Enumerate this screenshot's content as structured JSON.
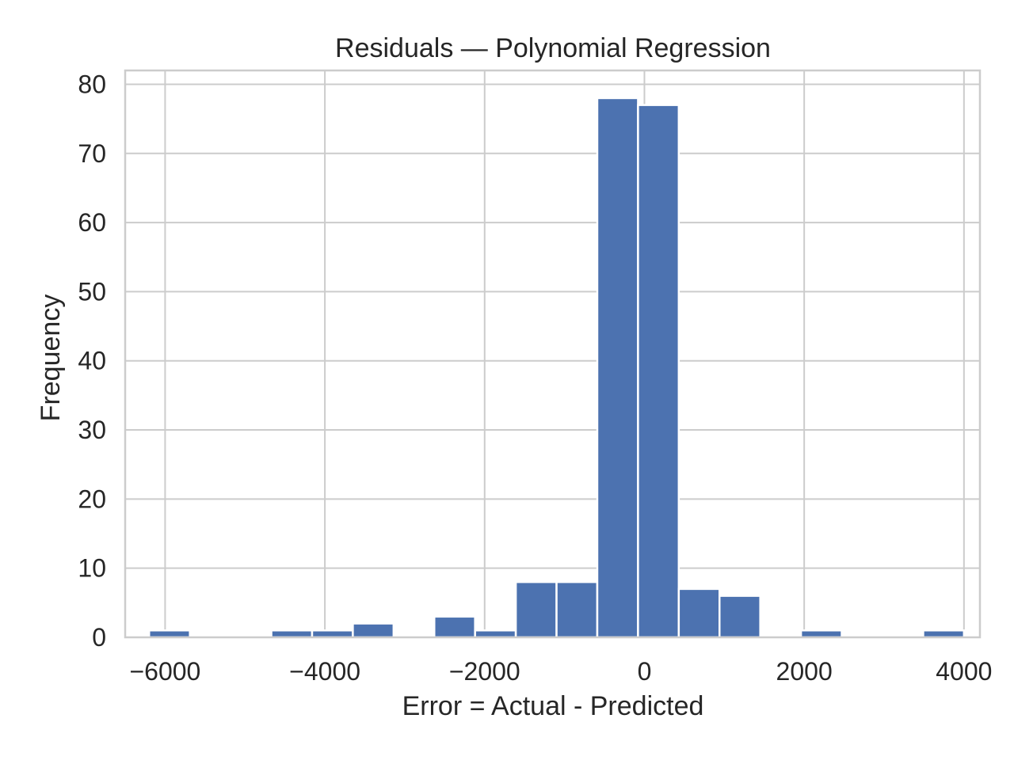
{
  "chart_data": {
    "type": "bar",
    "title": "Residuals — Polynomial Regression",
    "xlabel": "Error = Actual - Predicted",
    "ylabel": "Frequency",
    "xlim": [
      -6500,
      4200
    ],
    "ylim": [
      0,
      82
    ],
    "x_ticks": [
      -6000,
      -4000,
      -2000,
      0,
      2000,
      4000
    ],
    "x_tick_labels": [
      "−6000",
      "−4000",
      "−2000",
      "0",
      "2000",
      "4000"
    ],
    "y_ticks": [
      0,
      10,
      20,
      30,
      40,
      50,
      60,
      70,
      80
    ],
    "y_tick_labels": [
      "0",
      "10",
      "20",
      "30",
      "40",
      "50",
      "60",
      "70",
      "80"
    ],
    "grid": true,
    "bar_color": "#4c72b0",
    "grid_color": "#cccccc",
    "bins": [
      {
        "x0": -6200,
        "x1": -5690,
        "count": 1
      },
      {
        "x0": -5690,
        "x1": -5180,
        "count": 0
      },
      {
        "x0": -5180,
        "x1": -4670,
        "count": 0
      },
      {
        "x0": -4670,
        "x1": -4160,
        "count": 1
      },
      {
        "x0": -4160,
        "x1": -3650,
        "count": 1
      },
      {
        "x0": -3650,
        "x1": -3140,
        "count": 2
      },
      {
        "x0": -3140,
        "x1": -2630,
        "count": 0
      },
      {
        "x0": -2630,
        "x1": -2120,
        "count": 3
      },
      {
        "x0": -2120,
        "x1": -1610,
        "count": 1
      },
      {
        "x0": -1610,
        "x1": -1100,
        "count": 8
      },
      {
        "x0": -1100,
        "x1": -590,
        "count": 8
      },
      {
        "x0": -590,
        "x1": -80,
        "count": 78
      },
      {
        "x0": -80,
        "x1": 430,
        "count": 77
      },
      {
        "x0": 430,
        "x1": 940,
        "count": 7
      },
      {
        "x0": 940,
        "x1": 1450,
        "count": 6
      },
      {
        "x0": 1450,
        "x1": 1960,
        "count": 0
      },
      {
        "x0": 1960,
        "x1": 2470,
        "count": 1
      },
      {
        "x0": 2470,
        "x1": 2980,
        "count": 0
      },
      {
        "x0": 2980,
        "x1": 3490,
        "count": 0
      },
      {
        "x0": 3490,
        "x1": 4000,
        "count": 1
      }
    ]
  }
}
